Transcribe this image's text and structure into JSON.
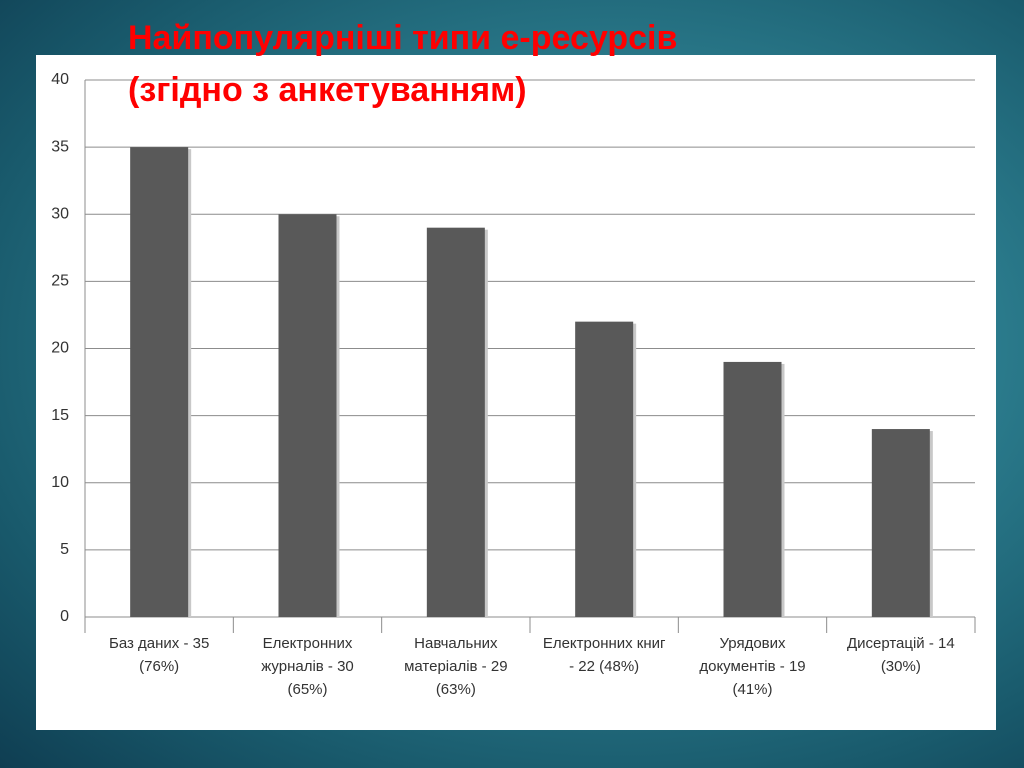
{
  "chart_data": {
    "type": "bar",
    "title": "Найпопулярніші типи е-ресурсів\n(згідно з анкетуванням)",
    "categories": [
      "Баз даних - 35\n(76%)",
      "Електронних\nжурналів - 30\n(65%)",
      "Навчальних\nматеріалів  - 29\n(63%)",
      "Електронних книг\n- 22  (48%)",
      "Урядових\nдокументів - 19\n(41%)",
      "Дисертацій - 14\n(30%)"
    ],
    "values": [
      35,
      30,
      29,
      22,
      19,
      14
    ],
    "color": "#595959",
    "ylim": [
      0,
      40
    ],
    "yticks": [
      0,
      5,
      10,
      15,
      20,
      25,
      30,
      35,
      40
    ],
    "grid": true
  }
}
